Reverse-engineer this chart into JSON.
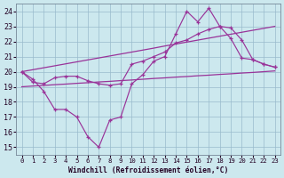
{
  "xlabel": "Windchill (Refroidissement éolien,°C)",
  "xlim": [
    -0.5,
    23.5
  ],
  "ylim": [
    14.5,
    24.5
  ],
  "yticks": [
    15,
    16,
    17,
    18,
    19,
    20,
    21,
    22,
    23,
    24
  ],
  "xticks": [
    0,
    1,
    2,
    3,
    4,
    5,
    6,
    7,
    8,
    9,
    10,
    11,
    12,
    13,
    14,
    15,
    16,
    17,
    18,
    19,
    20,
    21,
    22,
    23
  ],
  "bg_color": "#cce8ee",
  "grid_color": "#99bbcc",
  "line_color": "#993399",
  "line_zigzag": [
    20.0,
    19.5,
    18.7,
    17.5,
    17.5,
    17.0,
    15.7,
    15.0,
    16.8,
    17.0,
    19.2,
    19.8,
    20.7,
    21.0,
    22.5,
    24.0,
    23.3,
    24.2,
    23.0,
    22.2,
    20.9,
    20.8,
    20.5,
    20.3
  ],
  "line_smooth": [
    20.0,
    19.3,
    19.2,
    19.6,
    19.7,
    19.7,
    19.4,
    19.2,
    19.1,
    19.2,
    20.5,
    20.7,
    21.0,
    21.3,
    21.9,
    22.1,
    22.5,
    22.8,
    23.0,
    22.9,
    22.1,
    20.8,
    20.5,
    20.3
  ],
  "reg_upper": [
    20.0,
    20.13,
    20.26,
    20.39,
    20.52,
    20.65,
    20.78,
    20.91,
    21.04,
    21.17,
    21.3,
    21.43,
    21.56,
    21.7,
    21.83,
    21.96,
    22.09,
    22.22,
    22.35,
    22.48,
    22.61,
    22.74,
    22.87,
    23.0
  ],
  "reg_lower": [
    19.0,
    19.05,
    19.09,
    19.14,
    19.18,
    19.23,
    19.27,
    19.32,
    19.36,
    19.41,
    19.45,
    19.5,
    19.55,
    19.59,
    19.64,
    19.68,
    19.73,
    19.77,
    19.82,
    19.86,
    19.91,
    19.95,
    20.0,
    20.05
  ]
}
